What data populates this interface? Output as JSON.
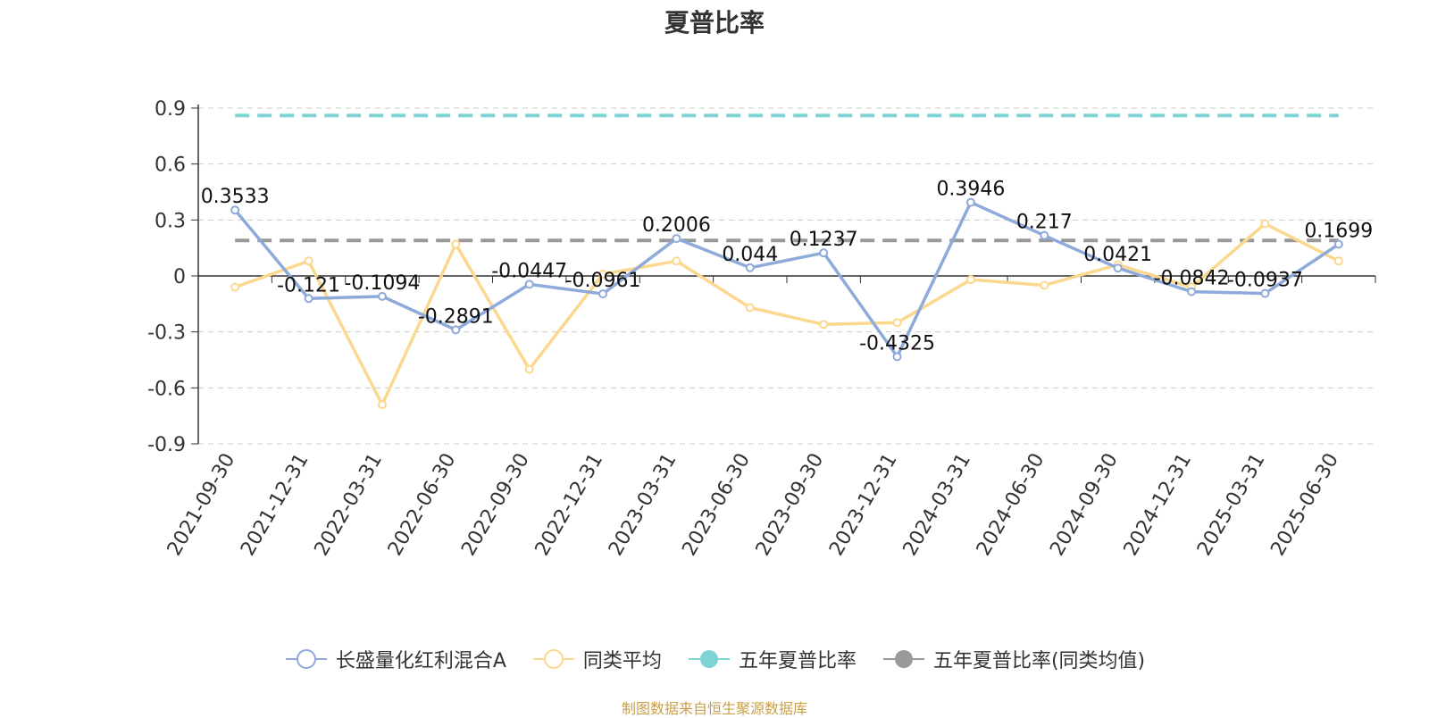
{
  "title": "夏普比率",
  "source_note": "制图数据来自恒生聚源数据库",
  "legend": [
    {
      "name": "长盛量化红利混合A",
      "color": "#8eaadb",
      "marker": "hollow-circle"
    },
    {
      "name": "同类平均",
      "color": "#fbd88e",
      "marker": "hollow-circle"
    },
    {
      "name": "五年夏普比率",
      "color": "#7fd3d6",
      "marker": "filled-circle"
    },
    {
      "name": "五年夏普比率(同类均值)",
      "color": "#999999",
      "marker": "filled-circle"
    }
  ],
  "chart_data": {
    "type": "line",
    "title": "夏普比率",
    "xlabel": "",
    "ylabel": "",
    "ylim": [
      -0.9,
      0.9
    ],
    "yticks": [
      "0.9",
      "0.6",
      "0.3",
      "0",
      "-0.3",
      "-0.6",
      "-0.9"
    ],
    "ytick_values": [
      0.9,
      0.6,
      0.3,
      0,
      -0.3,
      -0.6,
      -0.9
    ],
    "grid": true,
    "legend_position": "bottom",
    "categories": [
      "2021-09-30",
      "2021-12-31",
      "2022-03-31",
      "2022-06-30",
      "2022-09-30",
      "2022-12-31",
      "2023-03-31",
      "2023-06-30",
      "2023-09-30",
      "2023-12-31",
      "2024-03-31",
      "2024-06-30",
      "2024-09-30",
      "2024-12-31",
      "2025-03-31",
      "2025-06-30"
    ],
    "series": [
      {
        "name": "长盛量化红利混合A",
        "color": "#8eaadb",
        "values": [
          0.3533,
          -0.121,
          -0.1094,
          -0.2891,
          -0.0447,
          -0.0961,
          0.2006,
          0.044,
          0.1237,
          -0.4325,
          0.3946,
          0.217,
          0.0421,
          -0.0842,
          -0.0937,
          0.1699
        ],
        "labels": [
          "0.3533",
          "-0.121",
          "-0.1094",
          "-0.2891",
          "-0.0447",
          "-0.0961",
          "0.2006",
          "0.044",
          "0.1237",
          "-0.4325",
          "0.3946",
          "0.217",
          "0.0421",
          "-0.0842",
          "-0.0937",
          "0.1699"
        ]
      },
      {
        "name": "同类平均",
        "color": "#fbd88e",
        "values": [
          -0.06,
          0.08,
          -0.69,
          0.17,
          -0.5,
          0.01,
          0.08,
          -0.17,
          -0.26,
          -0.25,
          -0.02,
          -0.05,
          0.06,
          -0.06,
          0.28,
          0.08
        ]
      }
    ],
    "reference_lines": [
      {
        "name": "五年夏普比率",
        "color": "#7fd3d6",
        "value": 0.86
      },
      {
        "name": "五年夏普比率(同类均值)",
        "color": "#999999",
        "value": 0.19
      }
    ]
  }
}
